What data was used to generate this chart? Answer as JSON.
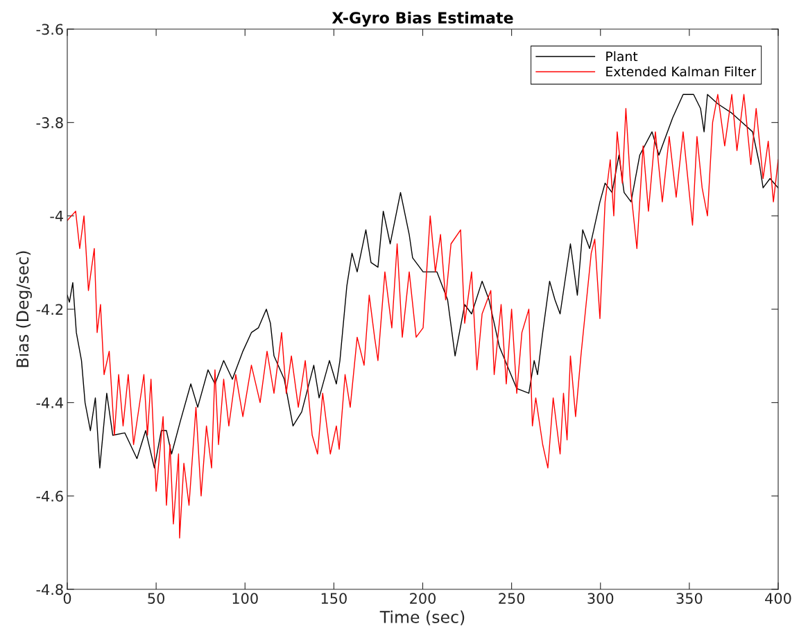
{
  "chart_data": {
    "type": "line",
    "title": "X-Gyro Bias Estimate",
    "xlabel": "Time (sec)",
    "ylabel": "Bias (Deg/sec)",
    "xlim": [
      0,
      400
    ],
    "ylim": [
      -4.8,
      -3.6
    ],
    "xticks": [
      0,
      50,
      100,
      150,
      200,
      250,
      300,
      350,
      400
    ],
    "yticks": [
      -4.8,
      -4.6,
      -4.4,
      -4.2,
      -4,
      -3.8,
      -3.6
    ],
    "grid": false,
    "legend": "top right",
    "marker": "none",
    "line_style": "solid",
    "series": [
      {
        "name": "Plant",
        "color": "#000000",
        "x": [
          0,
          1.2,
          3.1,
          5.1,
          8,
          10,
          13,
          15.8,
          18.3,
          22.2,
          25.6,
          32.4,
          39.2,
          44.1,
          49,
          52.9,
          55.8,
          58.7,
          63.6,
          69.5,
          73.4,
          79.2,
          83.1,
          88,
          92.9,
          98.8,
          103.6,
          107.5,
          112,
          114.3,
          116.3,
          122.1,
          127,
          131.9,
          138.7,
          141.7,
          147.5,
          151.4,
          153.4,
          157.3,
          160.2,
          163.1,
          168,
          170.9,
          174.8,
          177.8,
          181.7,
          187.5,
          192.4,
          194.3,
          200.2,
          208,
          214,
          218.2,
          223.6,
          227.5,
          233.4,
          237.3,
          243.1,
          252.9,
          259.7,
          262.7,
          264.6,
          267.5,
          271.4,
          274.4,
          277.3,
          283.1,
          287,
          290,
          293.9,
          299.7,
          302.6,
          306.5,
          310.4,
          313.3,
          317.2,
          322.1,
          329,
          332.9,
          340.6,
          346.5,
          352.4,
          356.3,
          358.3,
          360.2,
          366,
          373.9,
          379.8,
          385.6,
          389.5,
          391.5,
          395.4,
          400
        ],
        "values": [
          -4.17,
          -4.185,
          -4.143,
          -4.25,
          -4.31,
          -4.4,
          -4.46,
          -4.39,
          -4.54,
          -4.38,
          -4.47,
          -4.465,
          -4.52,
          -4.46,
          -4.54,
          -4.46,
          -4.46,
          -4.51,
          -4.44,
          -4.36,
          -4.41,
          -4.33,
          -4.36,
          -4.31,
          -4.35,
          -4.29,
          -4.25,
          -4.24,
          -4.2,
          -4.23,
          -4.3,
          -4.35,
          -4.45,
          -4.42,
          -4.32,
          -4.39,
          -4.31,
          -4.36,
          -4.31,
          -4.15,
          -4.08,
          -4.12,
          -4.03,
          -4.1,
          -4.11,
          -3.99,
          -4.06,
          -3.95,
          -4.04,
          -4.09,
          -4.12,
          -4.12,
          -4.18,
          -4.3,
          -4.19,
          -4.21,
          -4.14,
          -4.18,
          -4.28,
          -4.37,
          -4.38,
          -4.31,
          -4.34,
          -4.25,
          -4.14,
          -4.18,
          -4.21,
          -4.06,
          -4.17,
          -4.03,
          -4.07,
          -3.97,
          -3.93,
          -3.95,
          -3.87,
          -3.95,
          -3.97,
          -3.87,
          -3.82,
          -3.87,
          -3.79,
          -3.74,
          -3.74,
          -3.77,
          -3.82,
          -3.74,
          -3.76,
          -3.78,
          -3.8,
          -3.82,
          -3.89,
          -3.94,
          -3.92,
          -3.94
        ]
      },
      {
        "name": "Extended Kalman Filter",
        "color": "#ff0000",
        "x": [
          0,
          4.7,
          7,
          9.4,
          11.9,
          15.2,
          16.8,
          18.7,
          20.7,
          23.6,
          26.5,
          28.9,
          31.4,
          34.3,
          37.3,
          43.1,
          45.1,
          47.1,
          50,
          53.9,
          55.8,
          57.8,
          59.7,
          62.6,
          63.2,
          65.6,
          68.5,
          72.4,
          75.3,
          78.3,
          81.2,
          83.1,
          85.1,
          88,
          90.9,
          94.8,
          98.8,
          103.6,
          108.5,
          112.4,
          116.3,
          120.6,
          123.2,
          126.1,
          130,
          133.9,
          137.8,
          140.8,
          143.7,
          148,
          151.4,
          153,
          156.3,
          159.2,
          163.1,
          167,
          169.9,
          172.9,
          174.8,
          178.7,
          182.6,
          185.6,
          188.5,
          192.4,
          196.3,
          200.2,
          204.2,
          207.1,
          210,
          212.9,
          215.9,
          221.3,
          223.6,
          227.5,
          230.5,
          233.4,
          238.3,
          240.2,
          244.1,
          247,
          250,
          252.9,
          255.8,
          259.7,
          261.7,
          263.6,
          267.5,
          270.4,
          273.4,
          277.3,
          279.2,
          281.2,
          283.1,
          286,
          289,
          291.9,
          294.8,
          296.8,
          299.7,
          302.6,
          305.5,
          307.5,
          309.4,
          312.3,
          314.3,
          317.2,
          320.5,
          324,
          327,
          330.9,
          334.8,
          338.7,
          342.6,
          346.5,
          351.8,
          354.3,
          357.2,
          360.2,
          363.1,
          366,
          369.9,
          373.9,
          376.8,
          380.7,
          384.6,
          387.6,
          391.5,
          394.4,
          397.3,
          400
        ],
        "values": [
          -4.01,
          -3.99,
          -4.07,
          -4.0,
          -4.16,
          -4.07,
          -4.25,
          -4.19,
          -4.34,
          -4.29,
          -4.47,
          -4.34,
          -4.45,
          -4.34,
          -4.49,
          -4.34,
          -4.47,
          -4.35,
          -4.59,
          -4.43,
          -4.62,
          -4.49,
          -4.66,
          -4.51,
          -4.69,
          -4.53,
          -4.62,
          -4.41,
          -4.6,
          -4.45,
          -4.54,
          -4.33,
          -4.49,
          -4.35,
          -4.45,
          -4.34,
          -4.43,
          -4.32,
          -4.4,
          -4.29,
          -4.38,
          -4.25,
          -4.38,
          -4.3,
          -4.41,
          -4.31,
          -4.47,
          -4.51,
          -4.38,
          -4.51,
          -4.45,
          -4.5,
          -4.34,
          -4.41,
          -4.26,
          -4.32,
          -4.17,
          -4.26,
          -4.31,
          -4.12,
          -4.24,
          -4.06,
          -4.26,
          -4.12,
          -4.26,
          -4.24,
          -4.0,
          -4.12,
          -4.04,
          -4.18,
          -4.06,
          -4.03,
          -4.23,
          -4.12,
          -4.33,
          -4.21,
          -4.16,
          -4.34,
          -4.19,
          -4.36,
          -4.2,
          -4.38,
          -4.25,
          -4.2,
          -4.45,
          -4.39,
          -4.49,
          -4.54,
          -4.39,
          -4.51,
          -4.38,
          -4.48,
          -4.3,
          -4.43,
          -4.3,
          -4.19,
          -4.08,
          -4.05,
          -4.22,
          -3.97,
          -3.88,
          -4.0,
          -3.82,
          -3.93,
          -3.77,
          -3.95,
          -4.07,
          -3.85,
          -3.99,
          -3.82,
          -3.97,
          -3.83,
          -3.96,
          -3.82,
          -4.02,
          -3.83,
          -3.94,
          -4.0,
          -3.8,
          -3.74,
          -3.85,
          -3.74,
          -3.86,
          -3.74,
          -3.89,
          -3.77,
          -3.92,
          -3.84,
          -3.97,
          -3.88
        ]
      }
    ]
  }
}
